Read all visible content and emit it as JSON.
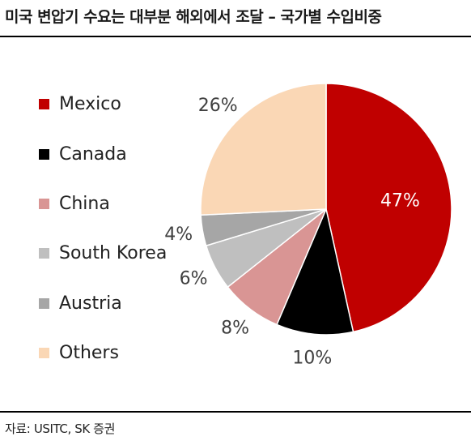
{
  "title": "미국 변압기 수요는 대부분 해외에서 조달 – 국가별 수입비중",
  "source": "자료: USITC, SK 증권",
  "chart_data": {
    "type": "pie",
    "start_angle": "12 o'clock, clockwise",
    "legend_position": "left",
    "slices": [
      {
        "name": "Mexico",
        "value": 47,
        "label": "47%",
        "color": "#c00000",
        "label_color": "#ffffff"
      },
      {
        "name": "Canada",
        "value": 10,
        "label": "10%",
        "color": "#000000",
        "label_color": "#404040"
      },
      {
        "name": "China",
        "value": 8,
        "label": "8%",
        "color": "#d99594",
        "label_color": "#404040"
      },
      {
        "name": "South Korea",
        "value": 6,
        "label": "6%",
        "color": "#bfbfbf",
        "label_color": "#404040"
      },
      {
        "name": "Austria",
        "value": 4,
        "label": "4%",
        "color": "#a6a6a6",
        "label_color": "#404040"
      },
      {
        "name": "Others",
        "value": 26,
        "label": "26%",
        "color": "#fad7b5",
        "label_color": "#404040"
      }
    ]
  }
}
